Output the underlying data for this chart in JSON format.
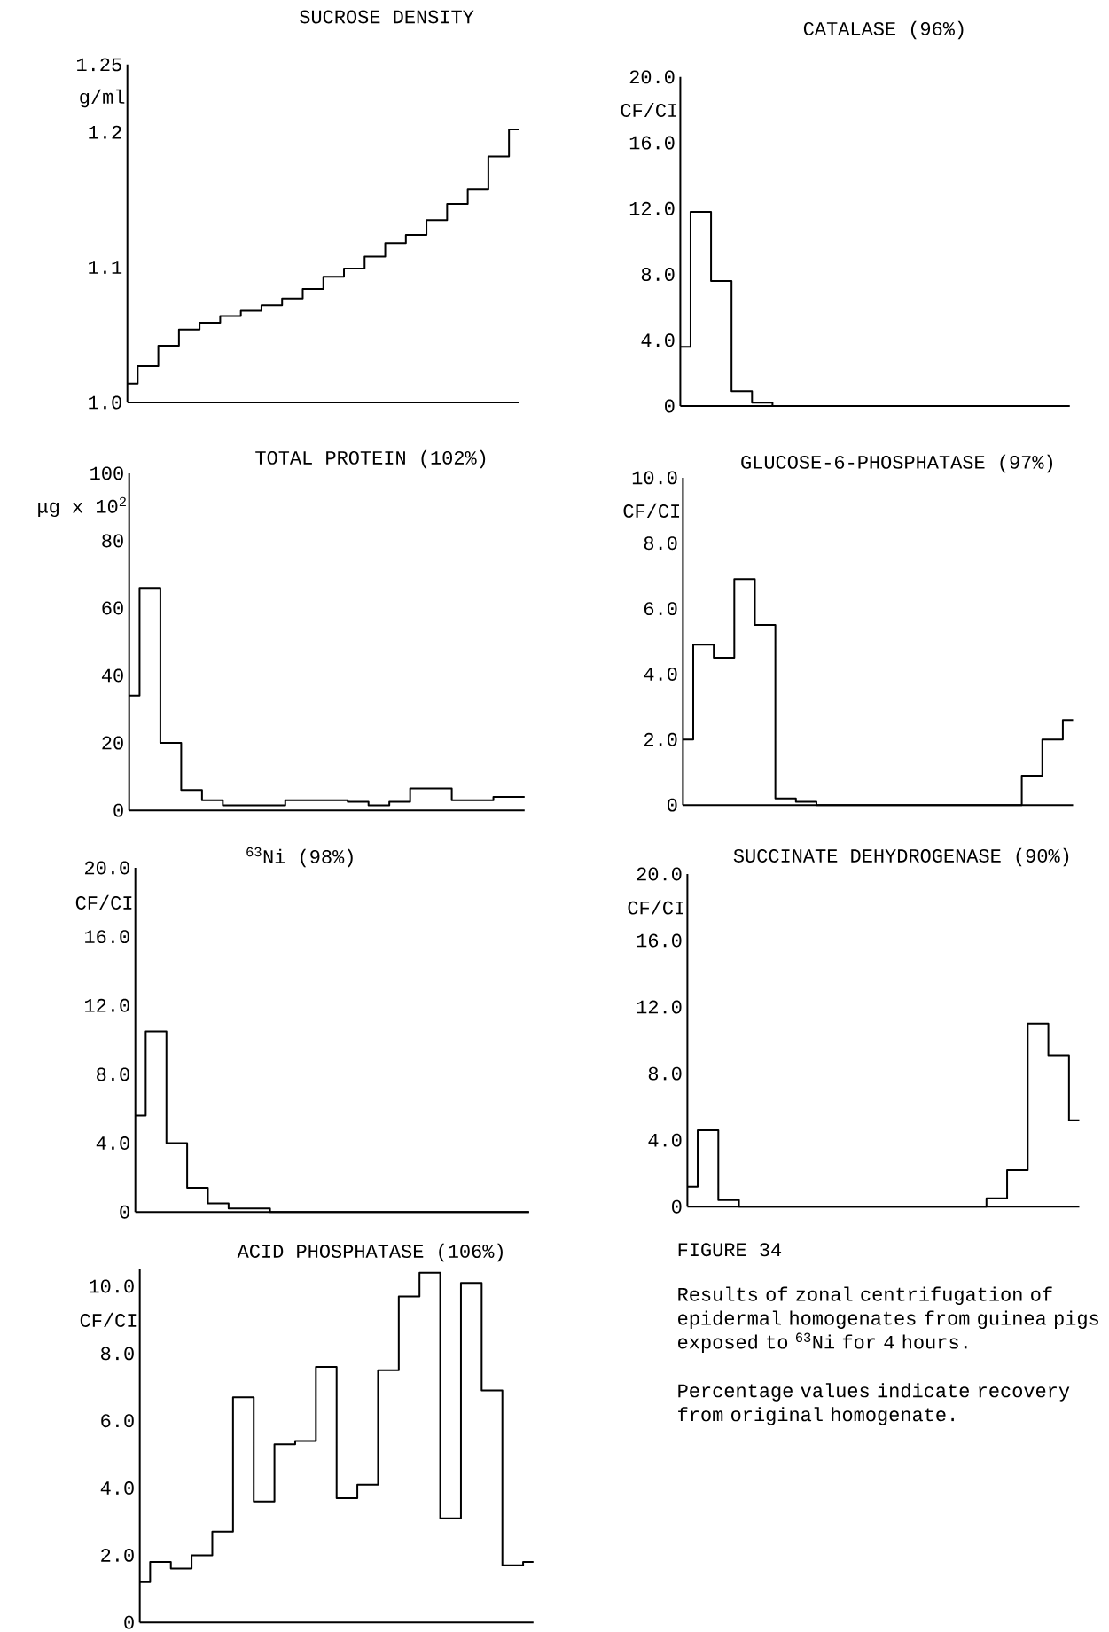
{
  "chart_data": [
    {
      "type": "step",
      "title": "SUCROSE DENSITY",
      "ylabel": "g/ml",
      "color": "#000000",
      "categories": [
        null,
        null,
        null,
        null,
        null,
        null,
        null,
        null,
        null,
        null,
        null,
        null,
        null,
        null,
        null,
        null,
        null,
        null,
        null,
        null
      ],
      "values": [
        1.014,
        1.027,
        1.042,
        1.054,
        1.059,
        1.064,
        1.068,
        1.072,
        1.077,
        1.084,
        1.093,
        1.099,
        1.108,
        1.118,
        1.124,
        1.135,
        1.147,
        1.158,
        1.182,
        1.202
      ],
      "ylim": [
        1.0,
        1.25
      ],
      "yticks": [
        {
          "value": 1.0,
          "label": "1.0"
        },
        1.1,
        1.2,
        1.25
      ]
    },
    {
      "type": "step",
      "title": "CATALASE (96%)",
      "ylabel": "CF/CI",
      "color": "#000000",
      "categories": [
        null,
        null,
        null,
        null,
        null,
        null,
        null,
        null,
        null,
        null,
        null,
        null,
        null,
        null,
        null,
        null,
        null,
        null,
        null,
        null
      ],
      "values": [
        3.6,
        11.8,
        7.6,
        0.9,
        0.2,
        0,
        0,
        0,
        0,
        0,
        0,
        0,
        0,
        0,
        0,
        0,
        0,
        0,
        0,
        0
      ],
      "ylim": [
        0,
        20
      ],
      "yticks": [
        0,
        {
          "value": 4,
          "label": "4.0"
        },
        {
          "value": 8,
          "label": "8.0"
        },
        {
          "value": 12,
          "label": "12.0"
        },
        {
          "value": 16,
          "label": "16.0"
        },
        {
          "value": 20,
          "label": "20.0"
        }
      ]
    },
    {
      "type": "step",
      "title": "TOTAL PROTEIN (102%)",
      "ylabel": "μg x 10$^{2}$",
      "color": "#000000",
      "categories": [
        null,
        null,
        null,
        null,
        null,
        null,
        null,
        null,
        null,
        null,
        null,
        null,
        null,
        null,
        null,
        null,
        null,
        null,
        null,
        null
      ],
      "values": [
        34,
        66,
        20,
        6,
        3,
        1.5,
        1.5,
        1.5,
        3,
        3,
        3,
        2.5,
        1.5,
        2.5,
        6.5,
        6.5,
        3,
        3,
        4,
        4
      ],
      "ylim": [
        0,
        100
      ],
      "yticks": [
        0,
        20,
        40,
        60,
        80,
        100
      ]
    },
    {
      "type": "step",
      "title": "GLUCOSE-6-PHOSPHATASE (97%)",
      "ylabel": "CF/CI",
      "color": "#000000",
      "categories": [
        null,
        null,
        null,
        null,
        null,
        null,
        null,
        null,
        null,
        null,
        null,
        null,
        null,
        null,
        null,
        null,
        null,
        null,
        null,
        null
      ],
      "values": [
        2.0,
        4.9,
        4.5,
        6.9,
        5.5,
        0.2,
        0.1,
        0,
        0,
        0,
        0,
        0,
        0,
        0,
        0,
        0,
        0,
        0.9,
        2.0,
        2.6
      ],
      "ylim": [
        0,
        10
      ],
      "yticks": [
        0,
        {
          "value": 2,
          "label": "2.0"
        },
        {
          "value": 4,
          "label": "4.0"
        },
        {
          "value": 6,
          "label": "6.0"
        },
        {
          "value": 8,
          "label": "8.0"
        },
        {
          "value": 10,
          "label": "10.0"
        }
      ]
    },
    {
      "type": "step",
      "title": "$^{63}$Ni (98%)",
      "ylabel": "CF/CI",
      "color": "#000000",
      "categories": [
        null,
        null,
        null,
        null,
        null,
        null,
        null,
        null,
        null,
        null,
        null,
        null,
        null,
        null,
        null,
        null,
        null,
        null,
        null,
        null
      ],
      "values": [
        5.6,
        10.5,
        4.0,
        1.4,
        0.5,
        0.2,
        0.2,
        0,
        0,
        0,
        0,
        0,
        0,
        0,
        0,
        0,
        0,
        0,
        0,
        0
      ],
      "ylim": [
        0,
        20
      ],
      "yticks": [
        0,
        {
          "value": 4,
          "label": "4.0"
        },
        {
          "value": 8,
          "label": "8.0"
        },
        {
          "value": 12,
          "label": "12.0"
        },
        {
          "value": 16,
          "label": "16.0"
        },
        {
          "value": 20,
          "label": "20.0"
        }
      ]
    },
    {
      "type": "step",
      "title": "SUCCINATE DEHYDROGENASE (90%)",
      "ylabel": "CF/CI",
      "color": "#000000",
      "categories": [
        null,
        null,
        null,
        null,
        null,
        null,
        null,
        null,
        null,
        null,
        null,
        null,
        null,
        null,
        null,
        null,
        null,
        null,
        null,
        null
      ],
      "values": [
        1.2,
        4.6,
        0.4,
        0,
        0,
        0,
        0,
        0,
        0,
        0,
        0,
        0,
        0,
        0,
        0,
        0.5,
        2.2,
        11.0,
        9.1,
        5.2
      ],
      "ylim": [
        0,
        20
      ],
      "yticks": [
        0,
        {
          "value": 4,
          "label": "4.0"
        },
        {
          "value": 8,
          "label": "8.0"
        },
        {
          "value": 12,
          "label": "12.0"
        },
        {
          "value": 16,
          "label": "16.0"
        },
        {
          "value": 20,
          "label": "20.0"
        }
      ]
    },
    {
      "type": "step",
      "title": "ACID PHOSPHATASE (106%)",
      "ylabel": "CF/CI",
      "color": "#000000",
      "categories": [
        null,
        null,
        null,
        null,
        null,
        null,
        null,
        null,
        null,
        null,
        null,
        null,
        null,
        null,
        null,
        null,
        null,
        null,
        null,
        null
      ],
      "values": [
        1.2,
        1.8,
        1.6,
        2.0,
        2.7,
        6.7,
        3.6,
        5.3,
        5.4,
        7.6,
        3.7,
        4.1,
        7.5,
        9.7,
        10.4,
        3.1,
        10.1,
        6.9,
        1.7,
        1.8
      ],
      "ylim": [
        0,
        10.5
      ],
      "yticks": [
        0,
        {
          "value": 2,
          "label": "2.0"
        },
        {
          "value": 4,
          "label": "4.0"
        },
        {
          "value": 6,
          "label": "6.0"
        },
        {
          "value": 8,
          "label": "8.0"
        },
        {
          "value": 10,
          "label": "10.0"
        }
      ]
    },
    {
      "type": "other",
      "title": "FIGURE 34",
      "annotations": [
        "Results of zonal centrifugation of epidermal homogenates from guinea pigs exposed to $^{63}$Ni for 4 hours.",
        "Percentage values indicate recovery from original homogenate."
      ]
    }
  ]
}
